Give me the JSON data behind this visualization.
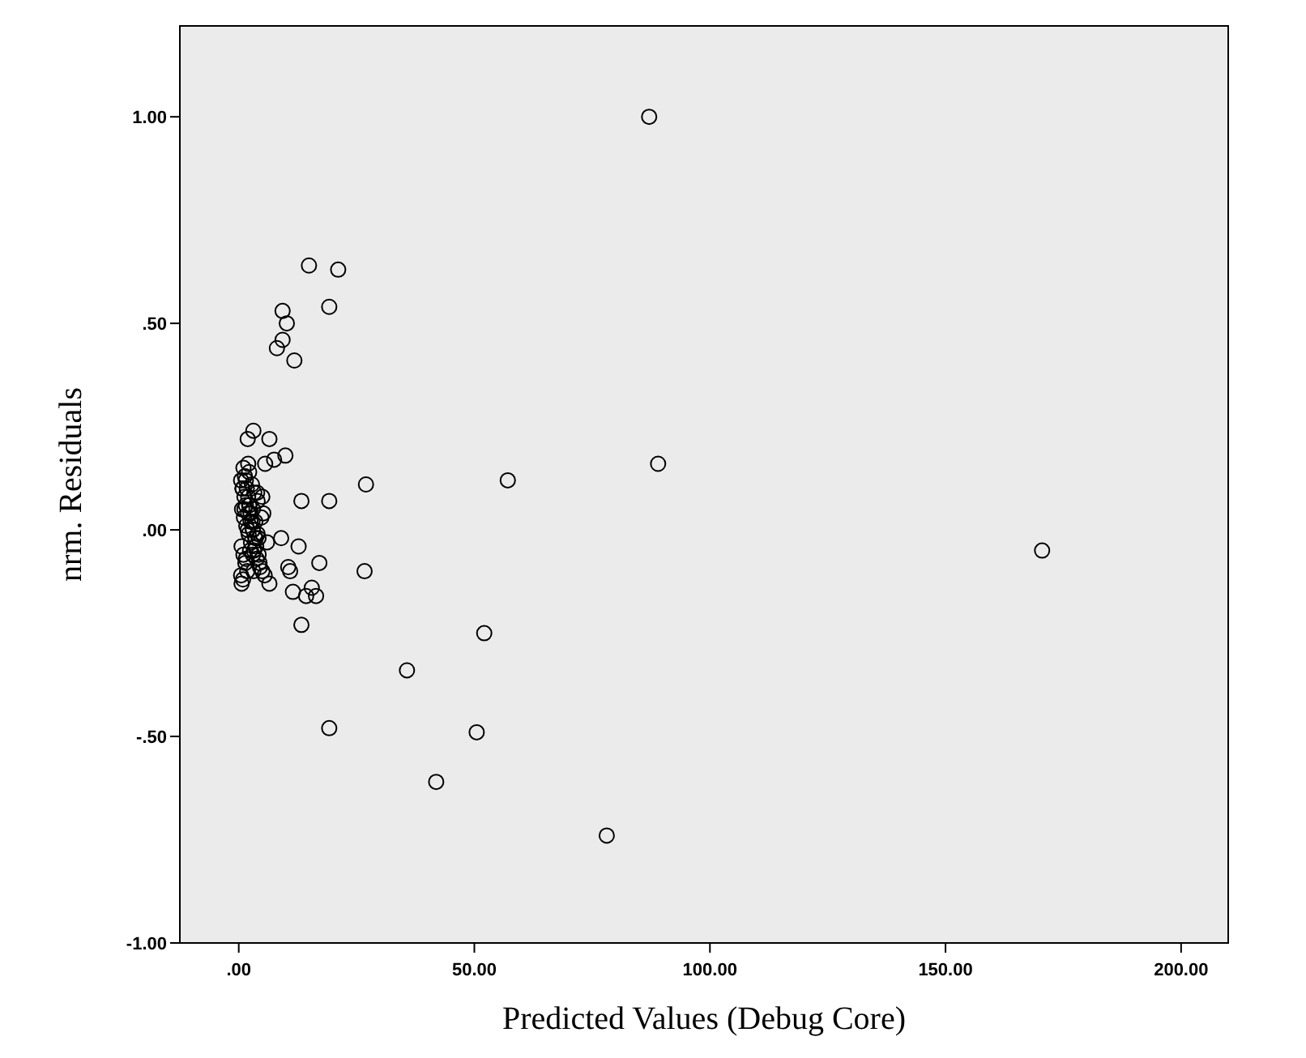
{
  "chart_data": {
    "type": "scatter",
    "xlabel": "Predicted Values (Debug Core)",
    "ylabel": "nrm. Residuals",
    "xlim": [
      -12.5,
      210
    ],
    "ylim": [
      -1,
      1.22
    ],
    "xticks": [
      {
        "value": 0,
        "label": ".00"
      },
      {
        "value": 50,
        "label": "50.00"
      },
      {
        "value": 100,
        "label": "100.00"
      },
      {
        "value": 150,
        "label": "150.00"
      },
      {
        "value": 200,
        "label": "200.00"
      }
    ],
    "yticks": [
      {
        "value": -1,
        "label": "-1.00"
      },
      {
        "value": -0.5,
        "label": "-.50"
      },
      {
        "value": 0,
        "label": ".00"
      },
      {
        "value": 0.5,
        "label": ".50"
      },
      {
        "value": 1,
        "label": "1.00"
      }
    ],
    "marker": "circle",
    "grid": false,
    "color": "#000000",
    "x": [
      87.1,
      14.9,
      21.1,
      9.3,
      19.2,
      10.2,
      9.3,
      8.1,
      11.8,
      3.1,
      1.9,
      6.5,
      9.9,
      89,
      5.6,
      13.3,
      19.2,
      27,
      57.1,
      170.5,
      26.7,
      17.1,
      12.7,
      9,
      11.5,
      15.5,
      14.3,
      16.4,
      13.3,
      10.5,
      10.9,
      52.1,
      35.7,
      19.2,
      50.5,
      41.9,
      78.1,
      0.5,
      0.8,
      1.2,
      1.5,
      2,
      2.5,
      3,
      3.5,
      0.6,
      1,
      1.4,
      1.8,
      2.2,
      2.8,
      3.3,
      4,
      0.7,
      1.1,
      1.6,
      2.1,
      2.6,
      3.2,
      3.8,
      4.5,
      0.5,
      0.9,
      1.3,
      1.7,
      2.3,
      2.9,
      3.6,
      4.2,
      5,
      0.6,
      1,
      1.5,
      2,
      2.5,
      3,
      3.7,
      4.4,
      5.5,
      0.8,
      1.2,
      1.9,
      2.4,
      3.1,
      3.9,
      4.8,
      6,
      1.5,
      2.2,
      3,
      3.5,
      4.2,
      5.2,
      6.5,
      7.5,
      2,
      3,
      4,
      5
    ],
    "values": [
      1,
      0.64,
      0.63,
      0.53,
      0.54,
      0.5,
      0.46,
      0.44,
      0.41,
      0.24,
      0.22,
      0.22,
      0.18,
      0.16,
      0.16,
      0.07,
      0.07,
      0.11,
      0.12,
      -0.05,
      -0.1,
      -0.08,
      -0.04,
      -0.02,
      -0.15,
      -0.14,
      -0.16,
      -0.16,
      -0.23,
      -0.09,
      -0.1,
      -0.25,
      -0.34,
      -0.48,
      -0.49,
      -0.61,
      -0.74,
      0.12,
      0.1,
      0.08,
      0.06,
      0.04,
      0.02,
      0,
      -0.02,
      -0.04,
      -0.06,
      -0.08,
      -0.1,
      0.14,
      0.11,
      0.09,
      0.07,
      0.05,
      0.03,
      0.01,
      -0.01,
      -0.03,
      -0.05,
      -0.07,
      -0.09,
      -0.11,
      -0.12,
      0.13,
      0.1,
      0.06,
      0.02,
      -0.02,
      -0.06,
      -0.1,
      -0.13,
      0.15,
      0.12,
      0.08,
      0.04,
      0,
      -0.04,
      -0.08,
      -0.11,
      0.1,
      0.05,
      0,
      -0.05,
      -0.1,
      0.09,
      0.03,
      -0.03,
      -0.07,
      0.06,
      -0.06,
      0.02,
      -0.02,
      0.04,
      -0.13,
      0.17,
      0.16,
      0.05,
      -0.01,
      0.08
    ]
  }
}
